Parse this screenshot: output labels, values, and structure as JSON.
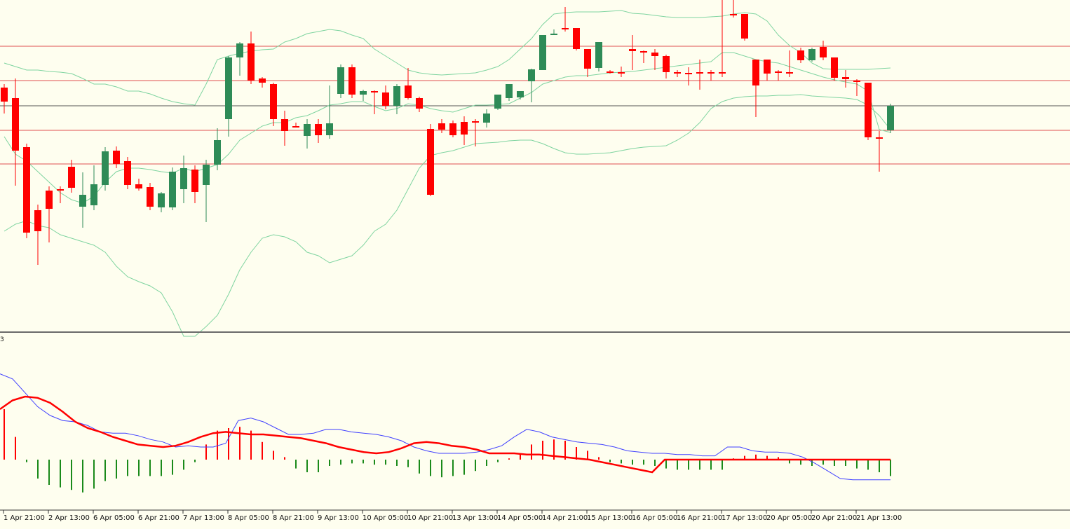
{
  "chart_data": {
    "type": "candlestick",
    "panel_label": "3",
    "colors": {
      "background": "#fefeef",
      "bull": "#2e8b57",
      "bear": "#ff0000",
      "bands": "#7fd4a0",
      "hline": "#e05050",
      "hline_dark": "#555555",
      "macd_fast": "#4040ff",
      "macd_slow": "#ff0000",
      "hist_pos": "#ff0000",
      "hist_neg": "#1a8a1a",
      "separator": "#6a6a6a"
    },
    "x_labels": [
      "1 Apr 21:00",
      "2 Apr 13:00",
      "6 Apr 05:00",
      "6 Apr 21:00",
      "7 Apr 13:00",
      "8 Apr 05:00",
      "8 Apr 21:00",
      "9 Apr 13:00",
      "10 Apr 05:00",
      "10 Apr 21:00",
      "13 Apr 13:00",
      "14 Apr 05:00",
      "14 Apr 21:00",
      "15 Apr 13:00",
      "16 Apr 05:00",
      "16 Apr 21:00",
      "17 Apr 13:00",
      "20 Apr 05:00",
      "20 Apr 21:00",
      "21 Apr 13:00"
    ],
    "price_ylim": [
      0,
      473
    ],
    "hlines": [
      66,
      115,
      186,
      234
    ],
    "hline_dark": 151,
    "candles": [
      [
        125,
        120,
        145,
        162
      ],
      [
        140,
        112,
        215,
        265
      ],
      [
        210,
        205,
        332,
        340
      ],
      [
        300,
        292,
        330,
        378
      ],
      [
        272,
        266,
        298,
        346
      ],
      [
        270,
        266,
        270,
        290
      ],
      [
        238,
        228,
        268,
        275
      ],
      [
        295,
        246,
        278,
        325
      ],
      [
        293,
        236,
        263,
        300
      ],
      [
        264,
        210,
        216,
        272
      ],
      [
        215,
        209,
        234,
        240
      ],
      [
        230,
        224,
        264,
        270
      ],
      [
        263,
        255,
        269,
        272
      ],
      [
        267,
        261,
        295,
        300
      ],
      [
        296,
        274,
        276,
        303
      ],
      [
        296,
        239,
        245,
        300
      ],
      [
        270,
        222,
        240,
        290
      ],
      [
        242,
        236,
        274,
        290
      ],
      [
        264,
        228,
        235,
        317
      ],
      [
        235,
        183,
        200,
        243
      ],
      [
        170,
        80,
        82,
        195
      ],
      [
        82,
        60,
        62,
        108
      ],
      [
        62,
        45,
        115,
        120
      ],
      [
        112,
        110,
        118,
        125
      ],
      [
        120,
        118,
        170,
        180
      ],
      [
        170,
        158,
        187,
        208
      ],
      [
        180,
        175,
        180,
        182
      ],
      [
        194,
        170,
        177,
        212
      ],
      [
        177,
        170,
        193,
        204
      ],
      [
        193,
        122,
        176,
        198
      ],
      [
        134,
        92,
        96,
        140
      ],
      [
        96,
        92,
        135,
        140
      ],
      [
        135,
        128,
        130,
        144
      ],
      [
        130,
        129,
        130,
        163
      ],
      [
        132,
        122,
        151,
        156
      ],
      [
        151,
        120,
        123,
        163
      ],
      [
        122,
        97,
        140,
        142
      ],
      [
        140,
        138,
        155,
        160
      ],
      [
        184,
        177,
        278,
        280
      ],
      [
        176,
        170,
        185,
        190
      ],
      [
        176,
        172,
        193,
        196
      ],
      [
        174,
        166,
        192,
        207
      ],
      [
        173,
        170,
        175,
        209
      ],
      [
        175,
        156,
        162,
        182
      ],
      [
        155,
        135,
        135,
        157
      ],
      [
        140,
        120,
        120,
        144
      ],
      [
        139,
        130,
        130,
        142
      ],
      [
        116,
        98,
        99,
        146
      ],
      [
        100,
        52,
        50,
        100
      ],
      [
        50,
        42,
        48,
        50
      ],
      [
        40,
        10,
        40,
        45
      ],
      [
        40,
        42,
        70,
        72
      ],
      [
        70,
        70,
        98,
        110
      ],
      [
        97,
        60,
        60,
        102
      ],
      [
        102,
        100,
        103,
        105
      ],
      [
        103,
        95,
        103,
        110
      ],
      [
        70,
        50,
        73,
        100
      ],
      [
        73,
        72,
        75,
        90
      ],
      [
        75,
        70,
        80,
        100
      ],
      [
        80,
        78,
        103,
        112
      ],
      [
        103,
        100,
        105,
        110
      ],
      [
        104,
        96,
        105,
        122
      ],
      [
        103,
        85,
        103,
        128
      ],
      [
        103,
        100,
        103,
        115
      ],
      [
        103,
        0,
        103,
        110
      ],
      [
        20,
        0,
        20,
        25
      ],
      [
        20,
        22,
        55,
        58
      ],
      [
        85,
        85,
        122,
        167
      ],
      [
        85,
        85,
        105,
        115
      ],
      [
        102,
        100,
        103,
        115
      ],
      [
        103,
        72,
        103,
        110
      ],
      [
        72,
        68,
        86,
        90
      ],
      [
        86,
        68,
        70,
        88
      ],
      [
        67,
        58,
        82,
        86
      ],
      [
        82,
        82,
        111,
        115
      ],
      [
        110,
        100,
        113,
        125
      ],
      [
        115,
        113,
        117,
        137
      ],
      [
        118,
        118,
        196,
        200
      ],
      [
        196,
        187,
        196,
        245
      ],
      [
        186,
        148,
        151,
        190
      ]
    ],
    "bb_upper": [
      90,
      95,
      100,
      100,
      102,
      103,
      105,
      112,
      120,
      120,
      124,
      130,
      130,
      134,
      140,
      145,
      148,
      150,
      120,
      85,
      80,
      76,
      73,
      71,
      70,
      60,
      55,
      48,
      45,
      42,
      44,
      50,
      55,
      70,
      80,
      90,
      100,
      104,
      106,
      107,
      106,
      105,
      104,
      100,
      95,
      85,
      70,
      55,
      35,
      20,
      18,
      17,
      17,
      17,
      16,
      15,
      19,
      20,
      22,
      24,
      25,
      25,
      25,
      24,
      23,
      20,
      18,
      20,
      30,
      50,
      65,
      75,
      90,
      98,
      99,
      99,
      99,
      99,
      98,
      97
    ],
    "bb_mid": [
      195,
      220,
      230,
      245,
      260,
      275,
      285,
      290,
      280,
      260,
      245,
      240,
      240,
      242,
      245,
      247,
      240,
      245,
      240,
      235,
      220,
      200,
      190,
      180,
      175,
      175,
      168,
      165,
      158,
      150,
      148,
      145,
      145,
      152,
      158,
      155,
      148,
      150,
      155,
      158,
      160,
      155,
      150,
      150,
      149,
      148,
      140,
      132,
      120,
      115,
      110,
      108,
      108,
      106,
      104,
      103,
      102,
      100,
      98,
      96,
      94,
      92,
      90,
      88,
      75,
      75,
      80,
      85,
      88,
      90,
      95,
      100,
      105,
      110,
      114,
      117,
      120,
      130,
      185,
      189
    ],
    "bb_lower": [
      330,
      320,
      315,
      322,
      325,
      335,
      340,
      345,
      350,
      360,
      380,
      395,
      402,
      408,
      418,
      445,
      480,
      480,
      466,
      450,
      420,
      385,
      360,
      340,
      335,
      338,
      345,
      360,
      365,
      375,
      370,
      365,
      350,
      330,
      320,
      300,
      270,
      240,
      222,
      218,
      215,
      210,
      205,
      204,
      203,
      201,
      200,
      200,
      205,
      212,
      218,
      220,
      220,
      219,
      218,
      215,
      212,
      210,
      209,
      208,
      200,
      190,
      175,
      155,
      145,
      140,
      138,
      137,
      137,
      136,
      136,
      135,
      137,
      138,
      139,
      140,
      142,
      150,
      165,
      185
    ],
    "macd_ylim": [
      -1,
      1
    ],
    "macd_hist": [
      0.4,
      0.18,
      -0.02,
      -0.15,
      -0.2,
      -0.22,
      -0.24,
      -0.26,
      -0.23,
      -0.17,
      -0.15,
      -0.13,
      -0.13,
      -0.13,
      -0.13,
      -0.12,
      -0.08,
      -0.02,
      0.12,
      0.23,
      0.25,
      0.26,
      0.23,
      0.14,
      0.07,
      0.02,
      -0.07,
      -0.1,
      -0.1,
      -0.05,
      -0.04,
      -0.03,
      -0.03,
      -0.04,
      -0.04,
      -0.05,
      -0.06,
      -0.11,
      -0.13,
      -0.14,
      -0.13,
      -0.12,
      -0.09,
      -0.05,
      -0.02,
      0.01,
      0.05,
      0.12,
      0.15,
      0.16,
      0.15,
      0.1,
      0.07,
      0.02,
      -0.02,
      -0.03,
      -0.04,
      -0.04,
      -0.05,
      -0.07,
      -0.08,
      -0.08,
      -0.08,
      -0.08,
      -0.08,
      0.01,
      0.03,
      0.04,
      0.03,
      0.02,
      -0.03,
      -0.04,
      -0.05,
      -0.04,
      -0.05,
      -0.05,
      -0.07,
      -0.08,
      -0.1,
      -0.13
    ],
    "macd_fast": [
      0.68,
      0.64,
      0.53,
      0.42,
      0.35,
      0.31,
      0.3,
      0.27,
      0.22,
      0.21,
      0.21,
      0.19,
      0.16,
      0.14,
      0.1,
      0.11,
      0.1,
      0.1,
      0.13,
      0.31,
      0.33,
      0.3,
      0.25,
      0.2,
      0.2,
      0.21,
      0.24,
      0.24,
      0.22,
      0.21,
      0.2,
      0.18,
      0.15,
      0.1,
      0.07,
      0.05,
      0.05,
      0.05,
      0.06,
      0.08,
      0.11,
      0.18,
      0.24,
      0.22,
      0.18,
      0.16,
      0.14,
      0.13,
      0.12,
      0.1,
      0.07,
      0.06,
      0.05,
      0.05,
      0.04,
      0.04,
      0.03,
      0.03,
      0.1,
      0.1,
      0.07,
      0.06,
      0.06,
      0.05,
      0.02,
      -0.03,
      -0.09,
      -0.15,
      -0.16,
      -0.16,
      -0.16,
      -0.16
    ],
    "macd_slow": [
      0.4,
      0.47,
      0.5,
      0.49,
      0.45,
      0.38,
      0.3,
      0.25,
      0.22,
      0.18,
      0.15,
      0.12,
      0.11,
      0.1,
      0.11,
      0.14,
      0.18,
      0.21,
      0.22,
      0.21,
      0.2,
      0.2,
      0.19,
      0.18,
      0.17,
      0.15,
      0.13,
      0.1,
      0.08,
      0.06,
      0.05,
      0.06,
      0.09,
      0.13,
      0.14,
      0.13,
      0.11,
      0.1,
      0.08,
      0.05,
      0.05,
      0.05,
      0.04,
      0.04,
      0.03,
      0.02,
      0.01,
      0.0,
      -0.02,
      -0.04,
      -0.06,
      -0.08,
      -0.1,
      0.0,
      0.0,
      0.0,
      0.0,
      0.0,
      0.0,
      0.0,
      0.0,
      0.0,
      0.0,
      0.0,
      0.0,
      0.0,
      0.0,
      0.0,
      0.0,
      0.0,
      0.0,
      0.0
    ]
  }
}
